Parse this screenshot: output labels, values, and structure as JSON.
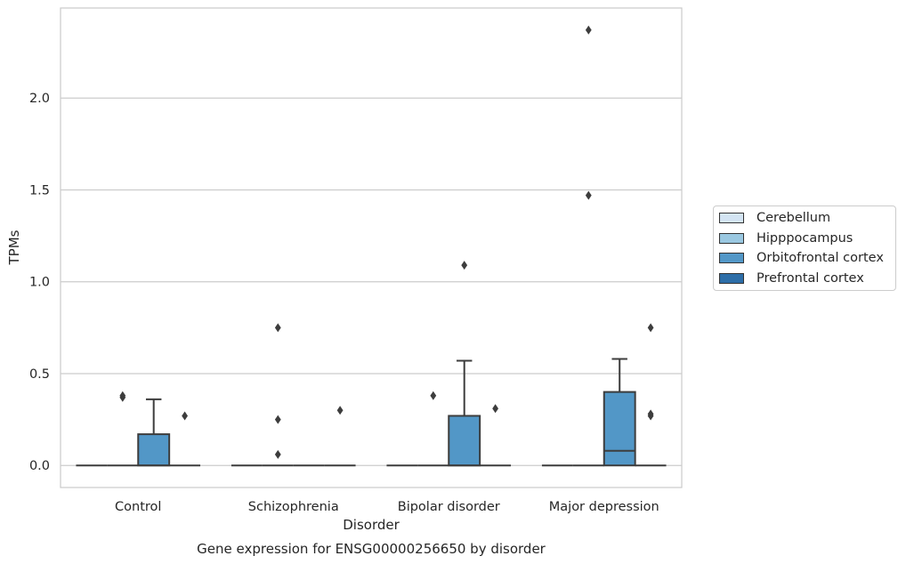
{
  "chart_data": {
    "type": "box",
    "title": "",
    "caption": "Gene expression for ENSG00000256650 by disorder",
    "xlabel": "Disorder",
    "ylabel": "TPMs",
    "categories": [
      "Control",
      "Schizophrenia",
      "Bipolar disorder",
      "Major depression"
    ],
    "ylim": [
      -0.12,
      2.49
    ],
    "yticks": [
      0.0,
      0.5,
      1.0,
      1.5,
      2.0
    ],
    "ytick_labels": [
      "0.0",
      "0.5",
      "1.0",
      "1.5",
      "2.0"
    ],
    "grid": "horizontal",
    "legend_position": "right",
    "series": [
      {
        "name": "Cerebellum",
        "color": "#d3e4f3",
        "boxes": [
          {
            "category": "Control",
            "q1": 0,
            "median": 0,
            "q3": 0,
            "whisker_low": 0,
            "whisker_high": 0,
            "outliers": []
          },
          {
            "category": "Schizophrenia",
            "q1": 0,
            "median": 0,
            "q3": 0,
            "whisker_low": 0,
            "whisker_high": 0,
            "outliers": []
          },
          {
            "category": "Bipolar disorder",
            "q1": 0,
            "median": 0,
            "q3": 0,
            "whisker_low": 0,
            "whisker_high": 0,
            "outliers": []
          },
          {
            "category": "Major depression",
            "q1": 0,
            "median": 0,
            "q3": 0,
            "whisker_low": 0,
            "whisker_high": 0,
            "outliers": []
          }
        ]
      },
      {
        "name": "Hipppocampus",
        "color": "#9ac8e1",
        "boxes": [
          {
            "category": "Control",
            "q1": 0,
            "median": 0,
            "q3": 0,
            "whisker_low": 0,
            "whisker_high": 0,
            "outliers": [
              0.37,
              0.38
            ]
          },
          {
            "category": "Schizophrenia",
            "q1": 0,
            "median": 0,
            "q3": 0,
            "whisker_low": 0,
            "whisker_high": 0,
            "outliers": [
              0.75,
              0.25,
              0.06
            ]
          },
          {
            "category": "Bipolar disorder",
            "q1": 0,
            "median": 0,
            "q3": 0,
            "whisker_low": 0,
            "whisker_high": 0,
            "outliers": [
              0.38
            ]
          },
          {
            "category": "Major depression",
            "q1": 0,
            "median": 0,
            "q3": 0,
            "whisker_low": 0,
            "whisker_high": 0,
            "outliers": [
              2.37,
              1.47
            ]
          }
        ]
      },
      {
        "name": "Orbitofrontal cortex",
        "color": "#5297c7",
        "boxes": [
          {
            "category": "Control",
            "q1": 0,
            "median": 0,
            "q3": 0.17,
            "whisker_low": 0,
            "whisker_high": 0.36,
            "outliers": []
          },
          {
            "category": "Schizophrenia",
            "q1": 0,
            "median": 0,
            "q3": 0,
            "whisker_low": 0,
            "whisker_high": 0,
            "outliers": []
          },
          {
            "category": "Bipolar disorder",
            "q1": 0,
            "median": 0,
            "q3": 0.27,
            "whisker_low": 0,
            "whisker_high": 0.57,
            "outliers": [
              1.09
            ]
          },
          {
            "category": "Major depression",
            "q1": 0,
            "median": 0.08,
            "q3": 0.4,
            "whisker_low": 0,
            "whisker_high": 0.58,
            "outliers": []
          }
        ]
      },
      {
        "name": "Prefrontal cortex",
        "color": "#2d6ea8",
        "boxes": [
          {
            "category": "Control",
            "q1": 0,
            "median": 0,
            "q3": 0,
            "whisker_low": 0,
            "whisker_high": 0,
            "outliers": [
              0.27
            ]
          },
          {
            "category": "Schizophrenia",
            "q1": 0,
            "median": 0,
            "q3": 0,
            "whisker_low": 0,
            "whisker_high": 0,
            "outliers": [
              0.3
            ]
          },
          {
            "category": "Bipolar disorder",
            "q1": 0,
            "median": 0,
            "q3": 0,
            "whisker_low": 0,
            "whisker_high": 0,
            "outliers": [
              0.31
            ]
          },
          {
            "category": "Major depression",
            "q1": 0,
            "median": 0,
            "q3": 0,
            "whisker_low": 0,
            "whisker_high": 0,
            "outliers": [
              0.75,
              0.28,
              0.27
            ]
          }
        ]
      }
    ]
  }
}
